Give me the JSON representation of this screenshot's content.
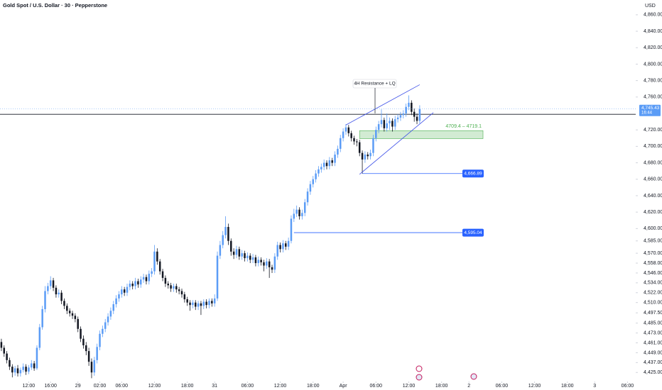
{
  "chart_data": {
    "type": "candlestick",
    "title": "Gold Spot / U.S. Dollar · 30 · Pepperstone",
    "currency": "USD",
    "up_color": "#5b9cf6",
    "down_color": "#131722",
    "grid": false,
    "xlim": [
      -0.5,
      232
    ],
    "ylim": [
      4414,
      4878
    ],
    "xticks": [
      {
        "value": 10,
        "label": "12:00"
      },
      {
        "value": 18,
        "label": "16:00"
      },
      {
        "value": 28,
        "label": "29"
      },
      {
        "value": 36,
        "label": "02:00"
      },
      {
        "value": 44,
        "label": "06:00"
      },
      {
        "value": 56,
        "label": "12:00"
      },
      {
        "value": 68,
        "label": "18:00"
      },
      {
        "value": 78,
        "label": "31"
      },
      {
        "value": 90,
        "label": "06:00"
      },
      {
        "value": 102,
        "label": "12:00"
      },
      {
        "value": 114,
        "label": "18:00"
      },
      {
        "value": 125,
        "label": "Apr"
      },
      {
        "value": 137,
        "label": "06:00"
      },
      {
        "value": 149,
        "label": "12:00"
      },
      {
        "value": 161,
        "label": "18:00"
      },
      {
        "value": 171,
        "label": "2"
      },
      {
        "value": 183,
        "label": "06:00"
      },
      {
        "value": 195,
        "label": "12:00"
      },
      {
        "value": 207,
        "label": "18:00"
      },
      {
        "value": 217,
        "label": "3"
      },
      {
        "value": 229,
        "label": "06:00"
      }
    ],
    "yticks": [
      {
        "value": 4860,
        "label": "4,860.00"
      },
      {
        "value": 4840,
        "label": "4,840.00"
      },
      {
        "value": 4820,
        "label": "4,820.00"
      },
      {
        "value": 4800,
        "label": "4,800.00"
      },
      {
        "value": 4780,
        "label": "4,780.00"
      },
      {
        "value": 4760,
        "label": "4,760.00"
      },
      {
        "value": 4720,
        "label": "4,720.00"
      },
      {
        "value": 4700,
        "label": "4,700.00"
      },
      {
        "value": 4680,
        "label": "4,680.00"
      },
      {
        "value": 4660,
        "label": "4,660.00"
      },
      {
        "value": 4640,
        "label": "4,640.00"
      },
      {
        "value": 4620,
        "label": "4,620.00"
      },
      {
        "value": 4600,
        "label": "4,600.00"
      },
      {
        "value": 4585,
        "label": "4,585.00"
      },
      {
        "value": 4570,
        "label": "4,570.00"
      },
      {
        "value": 4558,
        "label": "4,558.00"
      },
      {
        "value": 4546,
        "label": "4,546.00"
      },
      {
        "value": 4534,
        "label": "4,534.00"
      },
      {
        "value": 4522,
        "label": "4,522.00"
      },
      {
        "value": 4510,
        "label": "4,510.00"
      },
      {
        "value": 4497.5,
        "label": "4,497.50"
      },
      {
        "value": 4485,
        "label": "4,485.00"
      },
      {
        "value": 4473,
        "label": "4,473.00"
      },
      {
        "value": 4461,
        "label": "4,461.00"
      },
      {
        "value": 4449,
        "label": "4,449.00"
      },
      {
        "value": 4437,
        "label": "4,437.00"
      },
      {
        "value": 4425,
        "label": "4,425.00"
      }
    ],
    "candles": [
      [
        4462,
        4466,
        4451,
        4455
      ],
      [
        4455,
        4458,
        4444,
        4448
      ],
      [
        4448,
        4451,
        4436,
        4440
      ],
      [
        4440,
        4443,
        4428,
        4432
      ],
      [
        4432,
        4435,
        4419,
        4425
      ],
      [
        4425,
        4433,
        4421,
        4430
      ],
      [
        4430,
        4434,
        4420,
        4424
      ],
      [
        4424,
        4431,
        4420,
        4428
      ],
      [
        4428,
        4436,
        4425,
        4432
      ],
      [
        4432,
        4435,
        4422,
        4426
      ],
      [
        4426,
        4434,
        4423,
        4431
      ],
      [
        4431,
        4440,
        4428,
        4436
      ],
      [
        4436,
        4439,
        4427,
        4430
      ],
      [
        4430,
        4458,
        4428,
        4455
      ],
      [
        4455,
        4484,
        4452,
        4480
      ],
      [
        4480,
        4506,
        4477,
        4502
      ],
      [
        4502,
        4530,
        4498,
        4524
      ],
      [
        4524,
        4534,
        4520,
        4530
      ],
      [
        4530,
        4542,
        4526,
        4537
      ],
      [
        4537,
        4540,
        4524,
        4528
      ],
      [
        4528,
        4531,
        4516,
        4520
      ],
      [
        4520,
        4526,
        4516,
        4522
      ],
      [
        4522,
        4525,
        4508,
        4512
      ],
      [
        4512,
        4515,
        4502,
        4506
      ],
      [
        4506,
        4509,
        4496,
        4500
      ],
      [
        4500,
        4503,
        4493,
        4497
      ],
      [
        4497,
        4500,
        4490,
        4494
      ],
      [
        4494,
        4497,
        4486,
        4490
      ],
      [
        4490,
        4493,
        4474,
        4478
      ],
      [
        4478,
        4481,
        4462,
        4466
      ],
      [
        4466,
        4470,
        4454,
        4458
      ],
      [
        4458,
        4462,
        4446,
        4451
      ],
      [
        4451,
        4455,
        4433,
        4438
      ],
      [
        4438,
        4442,
        4418,
        4425
      ],
      [
        4425,
        4444,
        4421,
        4440
      ],
      [
        4440,
        4460,
        4436,
        4456
      ],
      [
        4456,
        4476,
        4452,
        4472
      ],
      [
        4472,
        4482,
        4468,
        4478
      ],
      [
        4478,
        4490,
        4474,
        4486
      ],
      [
        4486,
        4497,
        4482,
        4493
      ],
      [
        4493,
        4504,
        4489,
        4500
      ],
      [
        4500,
        4512,
        4496,
        4508
      ],
      [
        4508,
        4519,
        4504,
        4515
      ],
      [
        4515,
        4524,
        4511,
        4520
      ],
      [
        4520,
        4530,
        4516,
        4526
      ],
      [
        4526,
        4529,
        4518,
        4522
      ],
      [
        4522,
        4533,
        4518,
        4529
      ],
      [
        4529,
        4537,
        4525,
        4533
      ],
      [
        4533,
        4536,
        4526,
        4530
      ],
      [
        4530,
        4540,
        4526,
        4536
      ],
      [
        4536,
        4539,
        4528,
        4532
      ],
      [
        4532,
        4542,
        4528,
        4538
      ],
      [
        4538,
        4545,
        4534,
        4541
      ],
      [
        4541,
        4544,
        4532,
        4536
      ],
      [
        4536,
        4549,
        4532,
        4545
      ],
      [
        4545,
        4552,
        4541,
        4548
      ],
      [
        4548,
        4580,
        4544,
        4572
      ],
      [
        4572,
        4576,
        4556,
        4560
      ],
      [
        4560,
        4563,
        4544,
        4548
      ],
      [
        4548,
        4551,
        4536,
        4540
      ],
      [
        4540,
        4543,
        4529,
        4533
      ],
      [
        4533,
        4536,
        4527,
        4531
      ],
      [
        4531,
        4534,
        4523,
        4527
      ],
      [
        4527,
        4533,
        4523,
        4530
      ],
      [
        4530,
        4533,
        4522,
        4526
      ],
      [
        4526,
        4529,
        4520,
        4524
      ],
      [
        4524,
        4527,
        4516,
        4520
      ],
      [
        4520,
        4523,
        4510,
        4514
      ],
      [
        4514,
        4517,
        4506,
        4510
      ],
      [
        4510,
        4513,
        4500,
        4507
      ],
      [
        4507,
        4513,
        4503,
        4510
      ],
      [
        4510,
        4513,
        4501,
        4505
      ],
      [
        4505,
        4512,
        4501,
        4509
      ],
      [
        4509,
        4512,
        4495,
        4506
      ],
      [
        4506,
        4514,
        4502,
        4511
      ],
      [
        4511,
        4514,
        4503,
        4507
      ],
      [
        4507,
        4515,
        4503,
        4512
      ],
      [
        4512,
        4515,
        4505,
        4509
      ],
      [
        4509,
        4520,
        4505,
        4515
      ],
      [
        4515,
        4572,
        4512,
        4567
      ],
      [
        4567,
        4585,
        4563,
        4580
      ],
      [
        4580,
        4597,
        4576,
        4592
      ],
      [
        4592,
        4615,
        4588,
        4602
      ],
      [
        4602,
        4606,
        4580,
        4585
      ],
      [
        4585,
        4588,
        4567,
        4572
      ],
      [
        4572,
        4576,
        4563,
        4568
      ],
      [
        4568,
        4579,
        4564,
        4575
      ],
      [
        4575,
        4578,
        4562,
        4566
      ],
      [
        4566,
        4574,
        4562,
        4570
      ],
      [
        4570,
        4573,
        4560,
        4564
      ],
      [
        4564,
        4571,
        4560,
        4567
      ],
      [
        4567,
        4570,
        4558,
        4562
      ],
      [
        4562,
        4569,
        4558,
        4565
      ],
      [
        4565,
        4568,
        4554,
        4558
      ],
      [
        4558,
        4566,
        4554,
        4562
      ],
      [
        4562,
        4565,
        4555,
        4559
      ],
      [
        4559,
        4562,
        4548,
        4555
      ],
      [
        4555,
        4564,
        4551,
        4560
      ],
      [
        4560,
        4563,
        4540,
        4553
      ],
      [
        4553,
        4556,
        4546,
        4550
      ],
      [
        4550,
        4570,
        4546,
        4566
      ],
      [
        4566,
        4584,
        4562,
        4580
      ],
      [
        4580,
        4583,
        4571,
        4575
      ],
      [
        4575,
        4586,
        4571,
        4582
      ],
      [
        4582,
        4585,
        4574,
        4578
      ],
      [
        4578,
        4589,
        4574,
        4585
      ],
      [
        4585,
        4616,
        4582,
        4612
      ],
      [
        4612,
        4624,
        4608,
        4618
      ],
      [
        4618,
        4628,
        4614,
        4623
      ],
      [
        4623,
        4626,
        4611,
        4615
      ],
      [
        4615,
        4623,
        4611,
        4619
      ],
      [
        4619,
        4636,
        4615,
        4632
      ],
      [
        4632,
        4649,
        4628,
        4645
      ],
      [
        4645,
        4658,
        4641,
        4654
      ],
      [
        4654,
        4664,
        4650,
        4660
      ],
      [
        4660,
        4671,
        4656,
        4667
      ],
      [
        4667,
        4676,
        4663,
        4672
      ],
      [
        4672,
        4679,
        4668,
        4675
      ],
      [
        4675,
        4684,
        4671,
        4680
      ],
      [
        4680,
        4683,
        4672,
        4676
      ],
      [
        4676,
        4687,
        4672,
        4683
      ],
      [
        4683,
        4686,
        4676,
        4680
      ],
      [
        4680,
        4694,
        4676,
        4690
      ],
      [
        4690,
        4701,
        4686,
        4697
      ],
      [
        4697,
        4714,
        4693,
        4710
      ],
      [
        4710,
        4722,
        4706,
        4718
      ],
      [
        4718,
        4727,
        4714,
        4723
      ],
      [
        4723,
        4726,
        4712,
        4716
      ],
      [
        4716,
        4719,
        4706,
        4710
      ],
      [
        4710,
        4713,
        4702,
        4706
      ],
      [
        4706,
        4709,
        4700,
        4705
      ],
      [
        4705,
        4708,
        4688,
        4692
      ],
      [
        4692,
        4695,
        4667,
        4684
      ],
      [
        4684,
        4694,
        4680,
        4690
      ],
      [
        4690,
        4693,
        4684,
        4688
      ],
      [
        4688,
        4696,
        4684,
        4692
      ],
      [
        4692,
        4714,
        4688,
        4710
      ],
      [
        4710,
        4724,
        4706,
        4720
      ],
      [
        4720,
        4731,
        4716,
        4727
      ],
      [
        4727,
        4745,
        4723,
        4732
      ],
      [
        4732,
        4735,
        4718,
        4722
      ],
      [
        4722,
        4740,
        4718,
        4728
      ],
      [
        4728,
        4735,
        4720,
        4731
      ],
      [
        4731,
        4734,
        4718,
        4724
      ],
      [
        4724,
        4737,
        4720,
        4733
      ],
      [
        4733,
        4739,
        4729,
        4735
      ],
      [
        4735,
        4742,
        4731,
        4738
      ],
      [
        4738,
        4744,
        4734,
        4740
      ],
      [
        4740,
        4752,
        4736,
        4748
      ],
      [
        4748,
        4762,
        4744,
        4753
      ],
      [
        4753,
        4756,
        4738,
        4742
      ],
      [
        4742,
        4746,
        4730,
        4736
      ],
      [
        4736,
        4740,
        4727,
        4731
      ],
      [
        4731,
        4750,
        4728,
        4745.43
      ]
    ],
    "last_price": {
      "value": 4745.43,
      "label": "4,745.43"
    },
    "countdown": "16:44",
    "horizontal_line": 4739,
    "annotation": {
      "text": "4H Resistance + LQ"
    },
    "zone": {
      "label": "4709.4 – 4719.1",
      "low": 4709.4,
      "high": 4719.1,
      "start": 131
    },
    "levels": [
      {
        "value": 4666.89,
        "label": "4,666.89",
        "start": 132
      },
      {
        "value": 4595.04,
        "label": "4,595.04",
        "start": 107
      }
    ],
    "trendlines": [
      [
        [
          126,
          4726
        ],
        [
          153,
          4775
        ]
      ],
      [
        [
          131,
          4666
        ],
        [
          158,
          4741
        ]
      ]
    ]
  }
}
